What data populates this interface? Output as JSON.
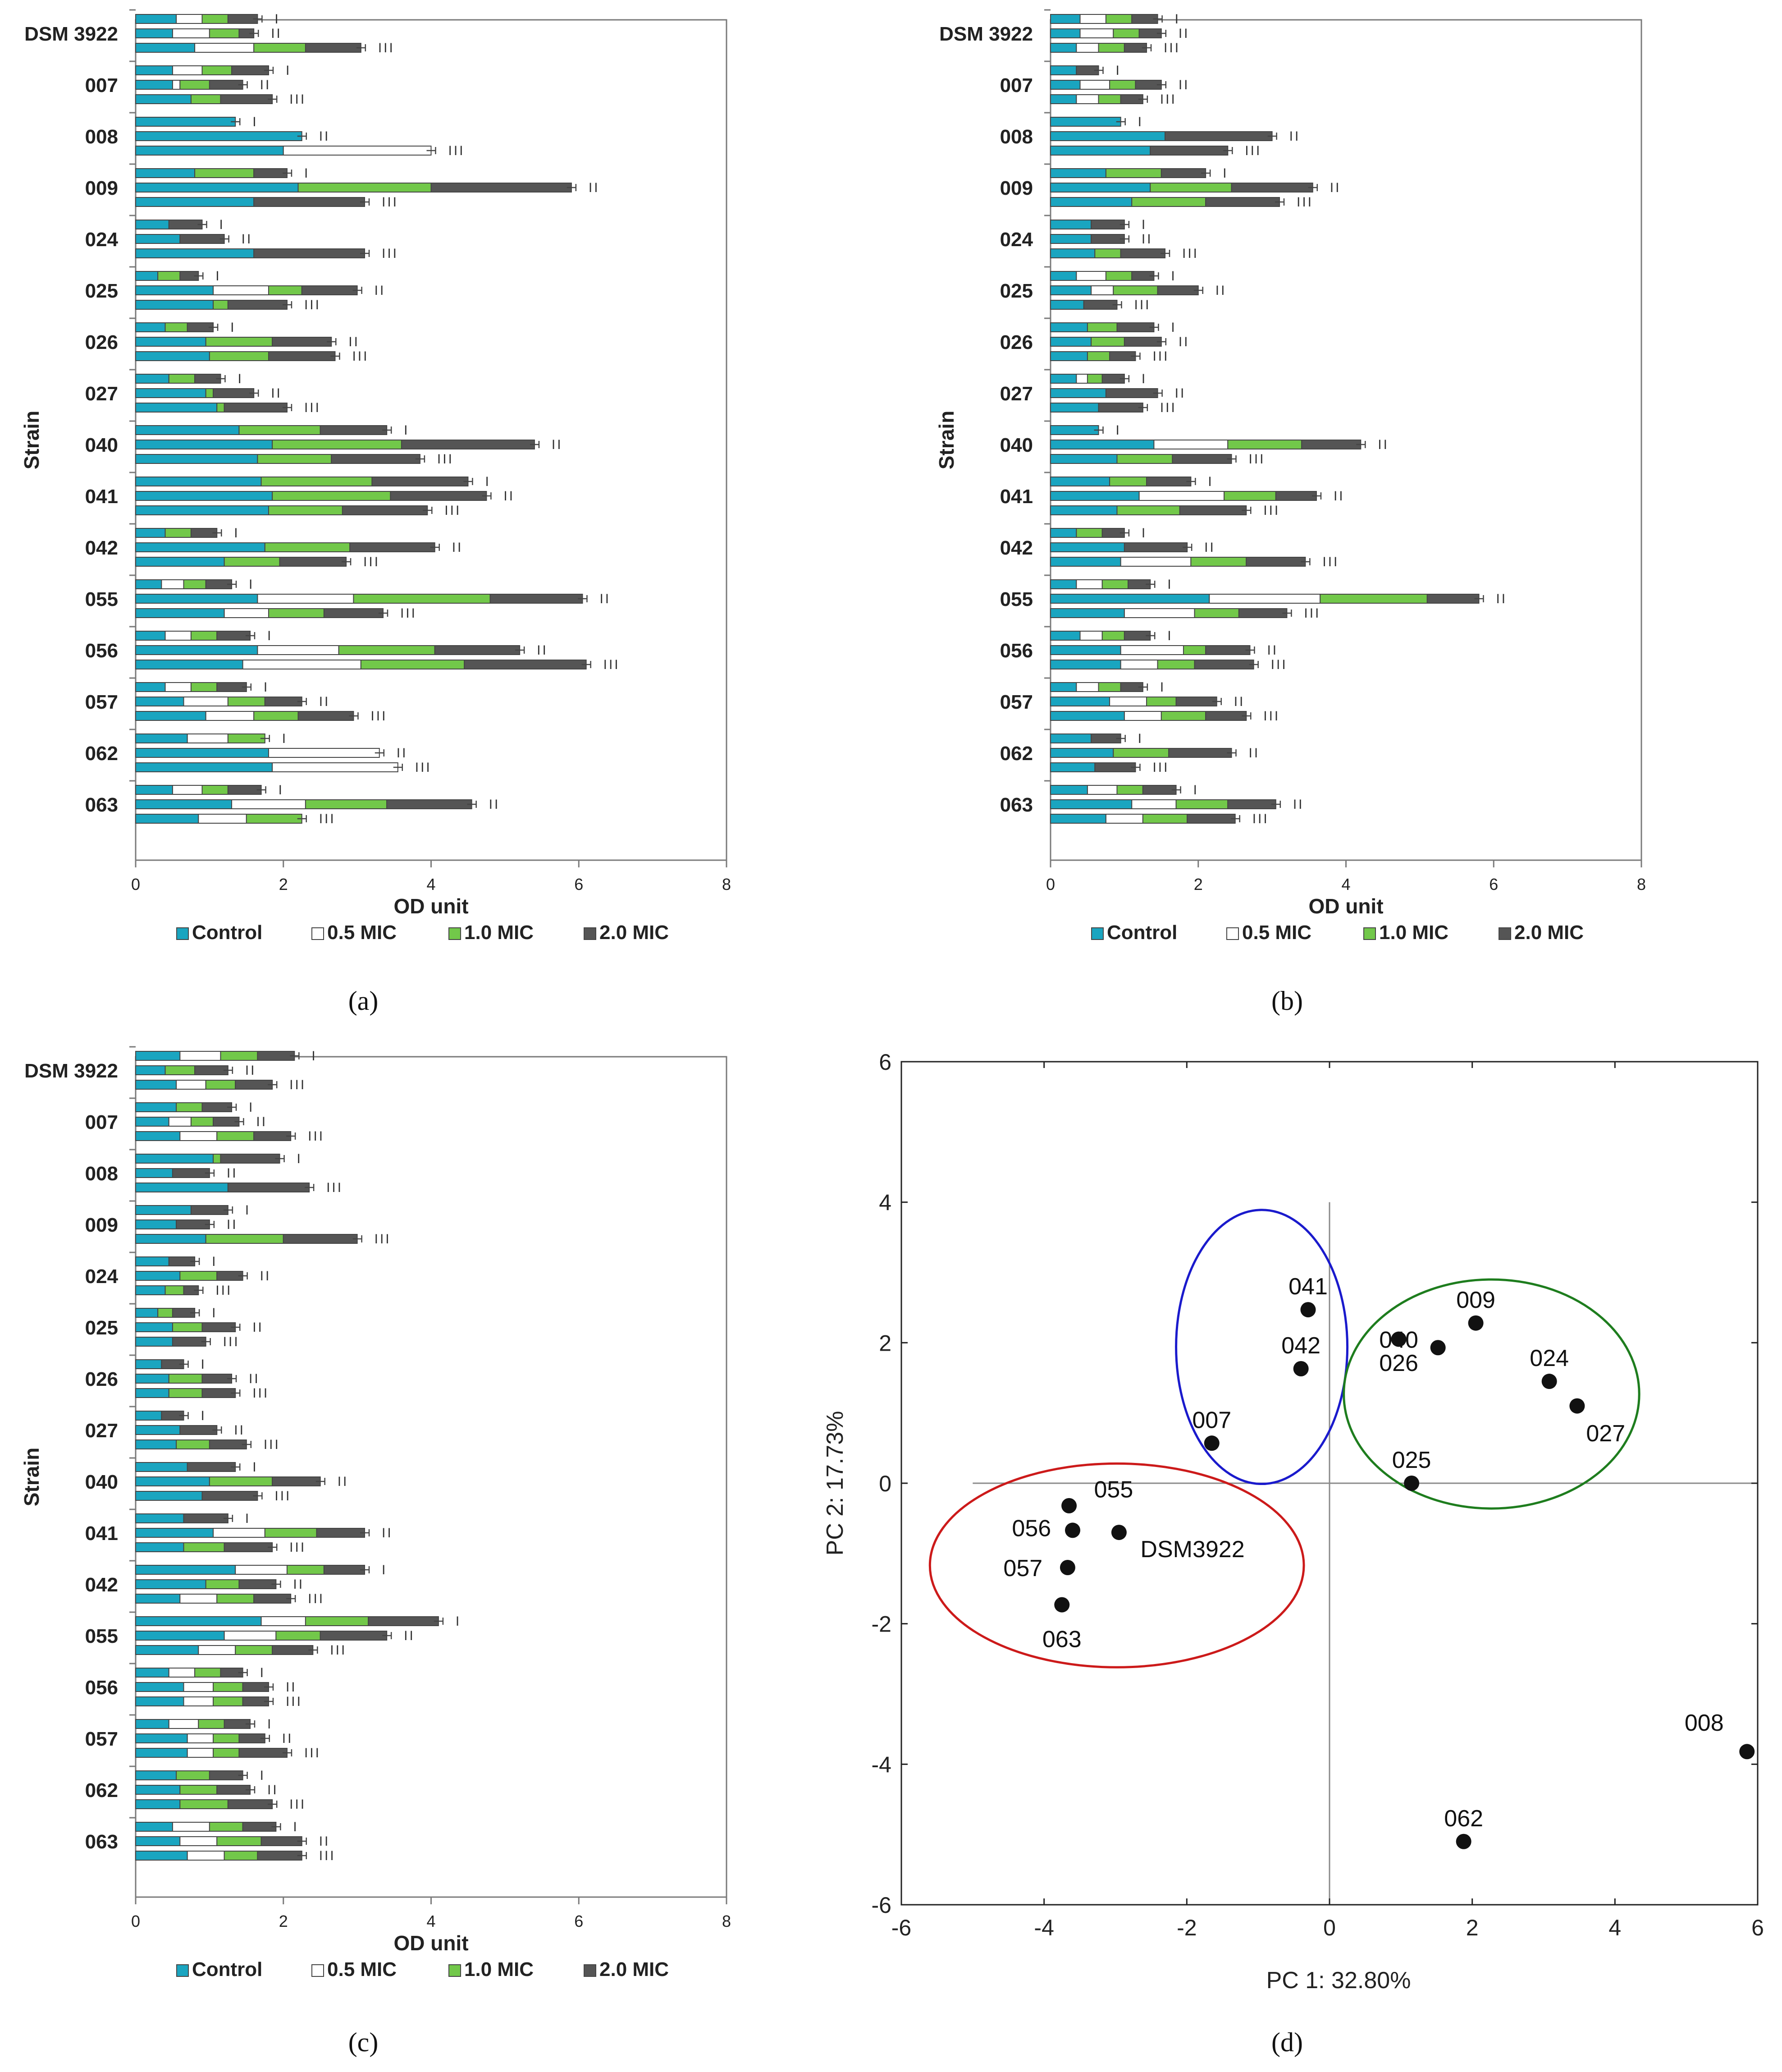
{
  "figure": {
    "panel_labels": [
      "(a)",
      "(b)",
      "(c)",
      "(d)"
    ],
    "legend_entries": [
      "Control",
      "0.5 MIC",
      "1.0 MIC",
      "2.0 MIC"
    ],
    "series_colors": [
      "#1aa5c0",
      "#ffffff",
      "#72c84a",
      "#555555"
    ]
  },
  "chart_data": [
    {
      "type": "bar",
      "stacked": true,
      "orientation": "horizontal",
      "panel": "(a)",
      "xlabel": "OD unit",
      "ylabel": "Strain",
      "xlim": [
        0,
        8
      ],
      "xticks": [
        "0",
        "2",
        "4",
        "6",
        "8"
      ],
      "categories": [
        "DSM 3922",
        "007",
        "008",
        "009",
        "024",
        "025",
        "026",
        "027",
        "040",
        "041",
        "042",
        "055",
        "056",
        "057",
        "062",
        "063"
      ],
      "sub_bar_labels": [
        "I",
        "II",
        "III"
      ],
      "series": [
        "Control",
        "0.5 MIC",
        "1.0 MIC",
        "2.0 MIC"
      ],
      "values": [
        [
          [
            0.55,
            0.35,
            0.35,
            0.4
          ],
          [
            0.5,
            0.5,
            0.4,
            0.2
          ],
          [
            0.8,
            0.8,
            0.7,
            0.75
          ]
        ],
        [
          [
            0.5,
            0.4,
            0.4,
            0.5
          ],
          [
            0.5,
            0.1,
            0.4,
            0.45
          ],
          [
            0.75,
            0,
            0.4,
            0.7
          ]
        ],
        [
          [
            1.35,
            0,
            0,
            0
          ],
          [
            2.25,
            0,
            0,
            0
          ],
          [
            2.0,
            2.0,
            0,
            0
          ]
        ],
        [
          [
            0.8,
            0,
            0.8,
            0.45
          ],
          [
            2.2,
            0,
            1.8,
            1.9
          ],
          [
            1.6,
            0,
            0,
            1.5
          ]
        ],
        [
          [
            0.45,
            0,
            0,
            0.45
          ],
          [
            0.6,
            0,
            0,
            0.6
          ],
          [
            1.6,
            0,
            0,
            1.5
          ]
        ],
        [
          [
            0.3,
            0,
            0.3,
            0.25
          ],
          [
            1.05,
            0.75,
            0.45,
            0.75
          ],
          [
            1.05,
            0,
            0.2,
            0.8
          ]
        ],
        [
          [
            0.4,
            0,
            0.3,
            0.35
          ],
          [
            0.95,
            0,
            0.9,
            0.8
          ],
          [
            1.0,
            0,
            0.8,
            0.9
          ]
        ],
        [
          [
            0.45,
            0,
            0.35,
            0.35
          ],
          [
            0.95,
            0,
            0.1,
            0.55
          ],
          [
            1.1,
            0,
            0.1,
            0.85
          ]
        ],
        [
          [
            1.4,
            0,
            1.1,
            0.9
          ],
          [
            1.85,
            0,
            1.75,
            1.8
          ],
          [
            1.65,
            0,
            1.0,
            1.2
          ]
        ],
        [
          [
            1.7,
            0,
            1.5,
            1.3
          ],
          [
            1.85,
            0,
            1.6,
            1.3
          ],
          [
            1.8,
            0,
            1.0,
            1.15
          ]
        ],
        [
          [
            0.4,
            0,
            0.35,
            0.35
          ],
          [
            1.75,
            0,
            1.15,
            1.15
          ],
          [
            1.2,
            0,
            0.75,
            0.9
          ]
        ],
        [
          [
            0.35,
            0.3,
            0.3,
            0.35
          ],
          [
            1.65,
            1.3,
            1.85,
            1.25
          ],
          [
            1.2,
            0.6,
            0.75,
            0.8
          ]
        ],
        [
          [
            0.4,
            0.35,
            0.35,
            0.45
          ],
          [
            1.65,
            1.1,
            1.3,
            1.15
          ],
          [
            1.45,
            1.6,
            1.4,
            1.65
          ]
        ],
        [
          [
            0.4,
            0.35,
            0.35,
            0.4
          ],
          [
            0.65,
            0.6,
            0.5,
            0.5
          ],
          [
            0.95,
            0.65,
            0.6,
            0.75
          ]
        ],
        [
          [
            0.7,
            0.55,
            0.5,
            0
          ],
          [
            1.8,
            1.5,
            0,
            0
          ],
          [
            1.85,
            1.7,
            0,
            0
          ]
        ],
        [
          [
            0.5,
            0.4,
            0.35,
            0.45
          ],
          [
            1.3,
            1.0,
            1.1,
            1.15
          ],
          [
            0.85,
            0.65,
            0.75,
            0
          ]
        ]
      ]
    },
    {
      "type": "bar",
      "stacked": true,
      "orientation": "horizontal",
      "panel": "(b)",
      "xlabel": "OD unit",
      "ylabel": "Strain",
      "xlim": [
        0,
        8
      ],
      "xticks": [
        "0",
        "2",
        "4",
        "6",
        "8"
      ],
      "categories": [
        "DSM 3922",
        "007",
        "008",
        "009",
        "024",
        "025",
        "026",
        "027",
        "040",
        "041",
        "042",
        "055",
        "056",
        "057",
        "062",
        "063"
      ],
      "sub_bar_labels": [
        "I",
        "II",
        "III"
      ],
      "series": [
        "Control",
        "0.5 MIC",
        "1.0 MIC",
        "2.0 MIC"
      ],
      "values": [
        [
          [
            0.4,
            0.35,
            0.35,
            0.35
          ],
          [
            0.4,
            0.45,
            0.35,
            0.3
          ],
          [
            0.35,
            0.3,
            0.35,
            0.3
          ]
        ],
        [
          [
            0.35,
            0,
            0,
            0.3
          ],
          [
            0.4,
            0.4,
            0.35,
            0.35
          ],
          [
            0.35,
            0.3,
            0.3,
            0.3
          ]
        ],
        [
          [
            0.95,
            0,
            0,
            0
          ],
          [
            1.55,
            0,
            0,
            1.45
          ],
          [
            1.35,
            0,
            0,
            1.05
          ]
        ],
        [
          [
            0.75,
            0,
            0.75,
            0.6
          ],
          [
            1.35,
            0,
            1.1,
            1.1
          ],
          [
            1.1,
            0,
            1.0,
            1.0
          ]
        ],
        [
          [
            0.55,
            0,
            0,
            0.45
          ],
          [
            0.55,
            0,
            0,
            0.45
          ],
          [
            0.6,
            0,
            0.35,
            0.6
          ]
        ],
        [
          [
            0.35,
            0.4,
            0.35,
            0.3
          ],
          [
            0.55,
            0.3,
            0.6,
            0.55
          ],
          [
            0.45,
            0,
            0,
            0.45
          ]
        ],
        [
          [
            0.5,
            0,
            0.4,
            0.5
          ],
          [
            0.55,
            0,
            0.45,
            0.5
          ],
          [
            0.5,
            0,
            0.3,
            0.35
          ]
        ],
        [
          [
            0.35,
            0.15,
            0.2,
            0.3
          ],
          [
            0.75,
            0,
            0,
            0.7
          ],
          [
            0.65,
            0,
            0,
            0.6
          ]
        ],
        [
          [
            0.65,
            0,
            0,
            0
          ],
          [
            1.4,
            1.0,
            1.0,
            0.8
          ],
          [
            0.9,
            0,
            0.75,
            0.8
          ]
        ],
        [
          [
            0.8,
            0,
            0.5,
            0.6
          ],
          [
            1.2,
            1.15,
            0.7,
            0.55
          ],
          [
            0.9,
            0,
            0.85,
            0.9
          ]
        ],
        [
          [
            0.35,
            0,
            0.35,
            0.3
          ],
          [
            1.0,
            0,
            0,
            0.85
          ],
          [
            0.95,
            0.95,
            0.75,
            0.8
          ]
        ],
        [
          [
            0.35,
            0.35,
            0.35,
            0.3
          ],
          [
            2.15,
            1.5,
            1.45,
            0.7
          ],
          [
            1.0,
            0.95,
            0.6,
            0.65
          ]
        ],
        [
          [
            0.4,
            0.3,
            0.3,
            0.35
          ],
          [
            0.95,
            0.85,
            0.3,
            0.6
          ],
          [
            0.95,
            0.5,
            0.5,
            0.8
          ]
        ],
        [
          [
            0.35,
            0.3,
            0.3,
            0.3
          ],
          [
            0.8,
            0.5,
            0.4,
            0.55
          ],
          [
            1.0,
            0.5,
            0.6,
            0.55
          ]
        ],
        [
          [
            0.55,
            0,
            0,
            0.4
          ],
          [
            0.85,
            0,
            0.75,
            0.85
          ],
          [
            0.6,
            0,
            0,
            0.55
          ]
        ],
        [
          [
            0.5,
            0.4,
            0.35,
            0.45
          ],
          [
            1.1,
            0.6,
            0.7,
            0.65
          ],
          [
            0.75,
            0.5,
            0.6,
            0.65
          ]
        ]
      ]
    },
    {
      "type": "bar",
      "stacked": true,
      "orientation": "horizontal",
      "panel": "(c)",
      "xlabel": "OD unit",
      "ylabel": "Strain",
      "xlim": [
        0,
        8
      ],
      "xticks": [
        "0",
        "2",
        "4",
        "6",
        "8"
      ],
      "categories": [
        "DSM 3922",
        "007",
        "008",
        "009",
        "024",
        "025",
        "026",
        "027",
        "040",
        "041",
        "042",
        "055",
        "056",
        "057",
        "062",
        "063"
      ],
      "sub_bar_labels": [
        "I",
        "II",
        "III"
      ],
      "series": [
        "Control",
        "0.5 MIC",
        "1.0 MIC",
        "2.0 MIC"
      ],
      "values": [
        [
          [
            0.6,
            0.55,
            0.5,
            0.5
          ],
          [
            0.4,
            0,
            0.4,
            0.45
          ],
          [
            0.55,
            0.4,
            0.4,
            0.5
          ]
        ],
        [
          [
            0.55,
            0,
            0.35,
            0.4
          ],
          [
            0.45,
            0.3,
            0.3,
            0.35
          ],
          [
            0.6,
            0.5,
            0.5,
            0.5
          ]
        ],
        [
          [
            1.05,
            0,
            0.1,
            0.8
          ],
          [
            0.5,
            0,
            0,
            0.5
          ],
          [
            1.25,
            0,
            0,
            1.1
          ]
        ],
        [
          [
            0.75,
            0,
            0,
            0.5
          ],
          [
            0.55,
            0,
            0,
            0.45
          ],
          [
            0.95,
            0,
            1.05,
            1.0
          ]
        ],
        [
          [
            0.45,
            0,
            0,
            0.35
          ],
          [
            0.6,
            0,
            0.5,
            0.35
          ],
          [
            0.4,
            0,
            0.25,
            0.2
          ]
        ],
        [
          [
            0.3,
            0,
            0.2,
            0.3
          ],
          [
            0.5,
            0,
            0.4,
            0.45
          ],
          [
            0.5,
            0,
            0,
            0.45
          ]
        ],
        [
          [
            0.35,
            0,
            0,
            0.3
          ],
          [
            0.45,
            0,
            0.45,
            0.4
          ],
          [
            0.45,
            0,
            0.45,
            0.45
          ]
        ],
        [
          [
            0.35,
            0,
            0,
            0.3
          ],
          [
            0.6,
            0,
            0,
            0.5
          ],
          [
            0.55,
            0,
            0.45,
            0.5
          ]
        ],
        [
          [
            0.7,
            0,
            0,
            0.65
          ],
          [
            1.0,
            0,
            0.85,
            0.65
          ],
          [
            0.9,
            0,
            0,
            0.75
          ]
        ],
        [
          [
            0.65,
            0,
            0,
            0.6
          ],
          [
            1.05,
            0.7,
            0.7,
            0.65
          ],
          [
            0.65,
            0,
            0.55,
            0.65
          ]
        ],
        [
          [
            1.35,
            0.7,
            0.5,
            0.55
          ],
          [
            0.95,
            0,
            0.45,
            0.5
          ],
          [
            0.6,
            0.5,
            0.5,
            0.5
          ]
        ],
        [
          [
            1.7,
            0.6,
            0.85,
            0.95
          ],
          [
            1.2,
            0.7,
            0.6,
            0.9
          ],
          [
            0.85,
            0.5,
            0.5,
            0.55
          ]
        ],
        [
          [
            0.45,
            0.35,
            0.35,
            0.3
          ],
          [
            0.65,
            0.4,
            0.4,
            0.35
          ],
          [
            0.65,
            0.4,
            0.4,
            0.35
          ]
        ],
        [
          [
            0.45,
            0.4,
            0.35,
            0.35
          ],
          [
            0.7,
            0.35,
            0.35,
            0.35
          ],
          [
            0.7,
            0.35,
            0.35,
            0.65
          ]
        ],
        [
          [
            0.55,
            0,
            0.45,
            0.45
          ],
          [
            0.6,
            0,
            0.5,
            0.45
          ],
          [
            0.6,
            0,
            0.65,
            0.6
          ]
        ],
        [
          [
            0.5,
            0.5,
            0.45,
            0.45
          ],
          [
            0.6,
            0.5,
            0.6,
            0.55
          ],
          [
            0.7,
            0.5,
            0.45,
            0.6
          ]
        ]
      ]
    },
    {
      "type": "scatter",
      "panel": "(d)",
      "xlabel": "PC 1: 32.80%",
      "ylabel": "PC 2: 17.73%",
      "xlim": [
        -6,
        6
      ],
      "ylim": [
        -6,
        6
      ],
      "xticks": [
        "-6",
        "-4",
        "-2",
        "0",
        "2",
        "4",
        "6"
      ],
      "yticks": [
        "-6",
        "-4",
        "-2",
        "0",
        "2",
        "4",
        "6"
      ],
      "points": [
        {
          "label": "041",
          "x": -0.3,
          "y": 2.47
        },
        {
          "label": "042",
          "x": -0.4,
          "y": 1.63
        },
        {
          "label": "007",
          "x": -1.65,
          "y": 0.57
        },
        {
          "label": "009",
          "x": 2.05,
          "y": 2.28
        },
        {
          "label": "040",
          "x": 1.52,
          "y": 1.93
        },
        {
          "label": "026",
          "x": 0.97,
          "y": 2.05
        },
        {
          "label": "024",
          "x": 3.08,
          "y": 1.45
        },
        {
          "label": "027",
          "x": 3.47,
          "y": 1.1
        },
        {
          "label": "025",
          "x": 1.15,
          "y": 0.0
        },
        {
          "label": "055",
          "x": -3.65,
          "y": -0.32
        },
        {
          "label": "056",
          "x": -3.6,
          "y": -0.67
        },
        {
          "label": "DSM3922",
          "x": -2.95,
          "y": -0.7
        },
        {
          "label": "057",
          "x": -3.67,
          "y": -1.2
        },
        {
          "label": "063",
          "x": -3.75,
          "y": -1.73
        },
        {
          "label": "008",
          "x": 5.85,
          "y": -3.82
        },
        {
          "label": "062",
          "x": 1.88,
          "y": -5.1
        }
      ],
      "ellipses": [
        {
          "color": "#1a1acc",
          "cx": -0.95,
          "cy": 1.94,
          "rx": 1.2,
          "ry": 1.95
        },
        {
          "color": "#1e7d1e",
          "cx": 2.27,
          "cy": 1.27,
          "rx": 2.07,
          "ry": 1.63
        },
        {
          "color": "#cc1a1a",
          "cx": -2.98,
          "cy": -1.17,
          "rx": 2.62,
          "ry": 1.45
        }
      ]
    }
  ]
}
